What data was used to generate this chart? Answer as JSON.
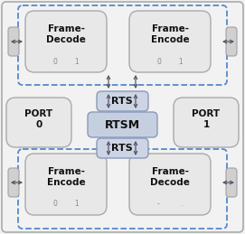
{
  "outer_bg": "#f2f2f2",
  "outer_border": "#999999",
  "box_fill": "#e8e8e8",
  "box_edge": "#aaaaaa",
  "rtsm_fill": "#c5cfe0",
  "rtsm_edge": "#8899bb",
  "rts_fill": "#cdd5e5",
  "rts_edge": "#8899bb",
  "port_fill": "#e8e8e8",
  "dash_color": "#5588cc",
  "conn_fill": "#d0d0d0",
  "conn_edge": "#999999",
  "title_top_left": "Frame-\nDecode",
  "title_top_right": "Frame-\nEncode",
  "title_port0": "PORT\n0",
  "title_port1": "PORT\n1",
  "title_rtsm": "RTSM",
  "title_rts": "RTS",
  "title_bot_left": "Frame-\nEncode",
  "title_bot_right": "Frame-\nDecode",
  "sub_top_left": "0        1",
  "sub_top_right": "0        1",
  "sub_bot_left": "0        1",
  "sub_bot_right": "-          .",
  "arrow_color": "#555566"
}
